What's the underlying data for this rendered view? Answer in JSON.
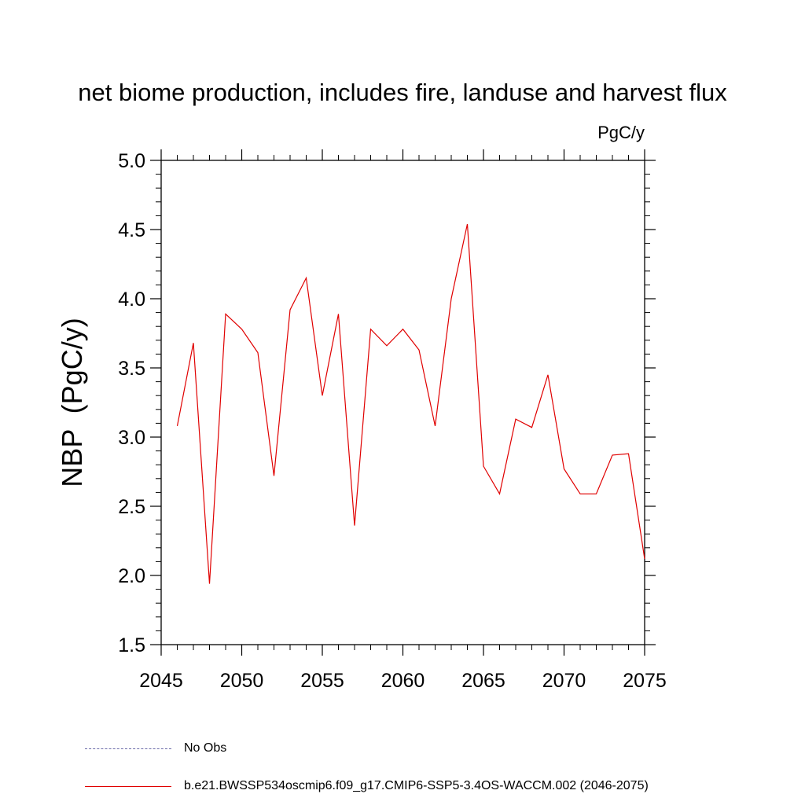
{
  "chart_data": {
    "type": "line",
    "title": "net biome production, includes fire, landuse and harvest flux",
    "units_label": "PgC/y",
    "xlabel": "",
    "ylabel": "NBP  (PgC/y)",
    "xlim": [
      2045,
      2075
    ],
    "ylim": [
      1.5,
      5.0
    ],
    "x_ticks": [
      2045,
      2050,
      2055,
      2060,
      2065,
      2070,
      2075
    ],
    "x_tick_labels": [
      "2045",
      "2050",
      "2055",
      "2060",
      "2065",
      "2070",
      "2075"
    ],
    "y_ticks": [
      1.5,
      2.0,
      2.5,
      3.0,
      3.5,
      4.0,
      4.5,
      5.0
    ],
    "y_tick_labels": [
      "1.5",
      "2.0",
      "2.5",
      "3.0",
      "3.5",
      "4.0",
      "4.5",
      "5.0"
    ],
    "grid": false,
    "series": [
      {
        "name": "b.e21.BWSSP534oscmip6.f09_g17.CMIP6-SSP5-3.4OS-WACCM.002 (2046-2075)",
        "color": "#e00000",
        "x": [
          2046,
          2047,
          2048,
          2049,
          2050,
          2051,
          2052,
          2053,
          2054,
          2055,
          2056,
          2057,
          2058,
          2059,
          2060,
          2061,
          2062,
          2063,
          2064,
          2065,
          2066,
          2067,
          2068,
          2069,
          2070,
          2071,
          2072,
          2073,
          2074,
          2075
        ],
        "values": [
          3.08,
          3.68,
          1.94,
          3.89,
          3.78,
          3.61,
          2.72,
          3.92,
          4.15,
          3.3,
          3.89,
          2.36,
          3.78,
          3.66,
          3.78,
          3.63,
          3.08,
          4.0,
          4.54,
          2.79,
          2.59,
          3.13,
          3.07,
          3.45,
          2.77,
          2.59,
          2.59,
          2.87,
          2.88,
          2.12
        ]
      }
    ],
    "legend": {
      "placement": "bottom-left",
      "entries": [
        {
          "label": "No Obs",
          "style": "dashed",
          "color": "#6a6aa8"
        },
        {
          "label": "b.e21.BWSSP534oscmip6.f09_g17.CMIP6-SSP5-3.4OS-WACCM.002 (2046-2075)",
          "style": "solid",
          "color": "#e00000"
        }
      ]
    }
  }
}
